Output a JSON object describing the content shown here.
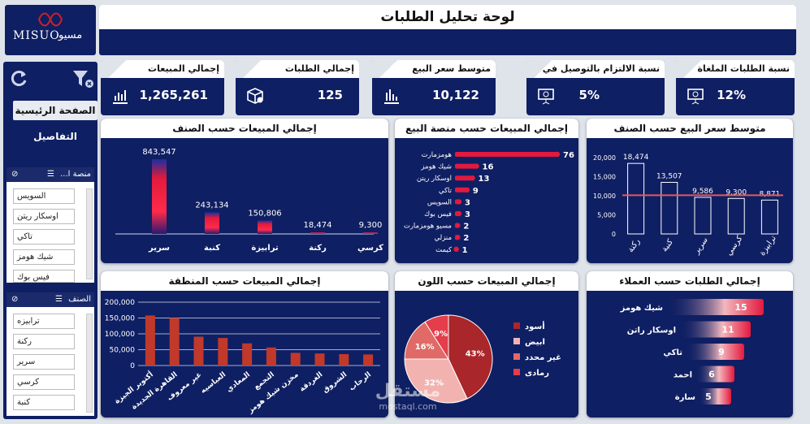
{
  "header": {
    "title": "لوحة تحليل الطلبات",
    "logo_text_en": "MISUO",
    "logo_text_ar": "مسيو"
  },
  "sidebar": {
    "nav": [
      {
        "label": "الصفحة الرئيسية",
        "active": true
      },
      {
        "label": "التفاصيل",
        "active": false
      }
    ],
    "slicer_platform": {
      "title": "منصة ا...",
      "items": [
        "السويس",
        "اوسكار ريتن",
        "تاكي",
        "شيك هومز",
        "فيس بوك"
      ]
    },
    "slicer_category": {
      "title": "الصنف",
      "items": [
        "ترابيزه",
        "ركنة",
        "سرير",
        "كرسي",
        "كنبة"
      ]
    }
  },
  "kpis": [
    {
      "title": "إجمالي المبيعات",
      "value": "1,265,261",
      "icon": "bar-chart-icon"
    },
    {
      "title": "إجمالي الطلبات",
      "value": "125",
      "icon": "box-icon"
    },
    {
      "title": "متوسط سعر البيع",
      "value": "10,122",
      "icon": "bar-chart-icon"
    },
    {
      "title": "نسبة الالتزام بالتوصيل في",
      "value": "5%",
      "icon": "presentation-icon"
    },
    {
      "title": "نسبة الطلبات الملغاة",
      "value": "12%",
      "icon": "presentation-icon"
    }
  ],
  "watermark": {
    "ar": "مستقل",
    "en": "mostaql.com"
  },
  "chart_data": [
    {
      "id": "sales-by-category",
      "type": "bar",
      "title": "إجمالي المبيعات حسب الصنف",
      "categories": [
        "سرير",
        "كنبة",
        "ترابيزة",
        "ركنة",
        "كرسي"
      ],
      "values": [
        843547,
        243134,
        150806,
        18474,
        9300
      ],
      "labels": [
        "843,547",
        "243,134",
        "150,806",
        "18,474",
        "9,300"
      ]
    },
    {
      "id": "sales-by-platform",
      "type": "bar",
      "orientation": "horizontal",
      "title": "إجمالي المبيعات حسب منصة البيع",
      "categories": [
        "هومزمارت",
        "شيك هومز",
        "اوسكار ريتن",
        "تاكي",
        "السويس",
        "فيس بوك",
        "مسيو هومزمارت",
        "منزلي",
        "كيمت"
      ],
      "values": [
        76,
        16,
        13,
        9,
        3,
        3,
        2,
        2,
        1
      ]
    },
    {
      "id": "avg-price-by-category",
      "type": "bar",
      "title": "متوسط سعر البيع حسب الصنف",
      "categories": [
        "ركنة",
        "كنبة",
        "سرير",
        "كرسي",
        "ترابيزة"
      ],
      "values": [
        18474,
        13507,
        9586,
        9300,
        8871
      ],
      "labels": [
        "18,474",
        "13,507",
        "9,586",
        "9,300",
        "8,871"
      ],
      "yticks": [
        "0",
        "5,000",
        "10,000",
        "15,000",
        "20,000"
      ],
      "ylim": [
        0,
        20000
      ],
      "average_line": 10122
    },
    {
      "id": "sales-by-region",
      "type": "bar",
      "title": "إجمالي المبيعات حسب المنطقة",
      "categories": [
        "أكتوبر الجيزة",
        "القاهرة الجديدة",
        "غير معروف",
        "العباسيه",
        "المعادي",
        "التجمع",
        "مخزن شيك هومز",
        "الغردقة",
        "الشروق",
        "الرحاب"
      ],
      "values": [
        158000,
        150000,
        91000,
        87000,
        70000,
        57000,
        40000,
        38000,
        36000,
        35000
      ],
      "yticks": [
        "0",
        "50,000",
        "100,000",
        "150,000",
        "200,000"
      ],
      "ylim": [
        0,
        200000
      ]
    },
    {
      "id": "sales-by-color",
      "type": "pie",
      "title": "إجمالي المبيعات حسب اللون",
      "slices": [
        {
          "name": "أسود",
          "value": 43,
          "label": "43%",
          "color": "#a9262a"
        },
        {
          "name": "ابيض",
          "value": 32,
          "label": "32%",
          "color": "#f2b3b0"
        },
        {
          "name": "غير محدد",
          "value": 16,
          "label": "16%",
          "color": "#e06a66"
        },
        {
          "name": "رمادى",
          "value": 9,
          "label": "9%",
          "color": "#e43d4b"
        }
      ]
    },
    {
      "id": "orders-by-customer",
      "type": "bar",
      "orientation": "funnel",
      "title": "إجمالي الطلبات حسب العملاء",
      "categories": [
        "شيك هومز",
        "اوسكار راتن",
        "تاكي",
        "احمد",
        "سارة"
      ],
      "values": [
        15,
        11,
        9,
        6,
        5
      ]
    }
  ]
}
